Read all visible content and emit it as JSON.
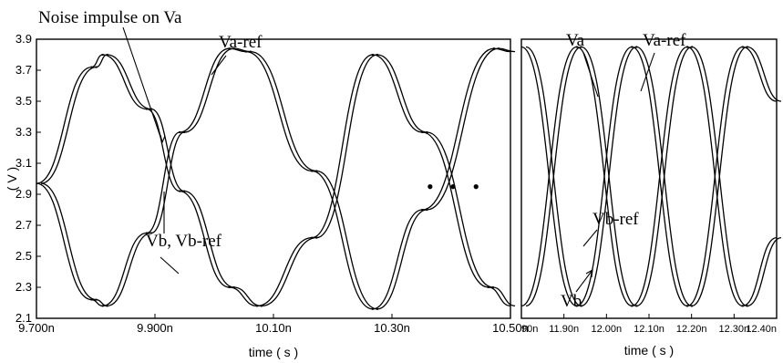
{
  "chart_data": [
    {
      "type": "line",
      "title": "",
      "xlabel": "time ( s )",
      "ylabel": "( V )",
      "xlim": [
        9.7,
        10.56
      ],
      "ylim": [
        2.1,
        3.9
      ],
      "x_ticks": [
        "9.700n",
        "9.900n",
        "10.10n",
        "10.30n",
        "10.50n"
      ],
      "y_ticks": [
        "3.9",
        "3.7",
        "3.5",
        "3.3",
        "3.1",
        "2.9",
        "2.7",
        "2.5",
        "2.3",
        "2.1"
      ],
      "series": [
        {
          "name": "Va",
          "x": [
            9.7,
            9.8,
            9.82,
            9.9,
            9.96,
            10.05,
            10.1,
            10.2,
            10.31,
            10.4,
            10.52,
            10.56
          ],
          "y": [
            2.97,
            3.72,
            3.8,
            3.45,
            2.92,
            2.3,
            2.18,
            2.62,
            3.8,
            3.3,
            2.3,
            2.18
          ]
        },
        {
          "name": "Va-ref",
          "x": [
            9.7,
            9.8,
            9.82,
            9.9,
            9.96,
            10.05,
            10.1,
            10.2,
            10.31,
            10.4,
            10.52,
            10.56
          ],
          "y": [
            2.97,
            3.72,
            3.8,
            3.45,
            2.92,
            2.3,
            2.18,
            2.62,
            3.8,
            3.3,
            2.3,
            2.18
          ]
        },
        {
          "name": "Vb",
          "x": [
            9.7,
            9.8,
            9.82,
            9.9,
            9.96,
            10.05,
            10.08,
            10.2,
            10.31,
            10.4,
            10.53,
            10.56
          ],
          "y": [
            2.97,
            2.22,
            2.18,
            2.65,
            3.3,
            3.84,
            3.82,
            3.05,
            2.16,
            2.8,
            3.84,
            3.82
          ]
        },
        {
          "name": "Vb-ref",
          "x": [
            9.7,
            9.8,
            9.82,
            9.9,
            9.96,
            10.05,
            10.08,
            10.2,
            10.31,
            10.4,
            10.53,
            10.56
          ],
          "y": [
            2.97,
            2.22,
            2.18,
            2.65,
            3.3,
            3.84,
            3.82,
            3.05,
            2.16,
            2.8,
            3.84,
            3.82
          ]
        }
      ],
      "annotations": [
        "Noise impulse on Va",
        "Va-ref",
        "Vb, Vb-ref"
      ]
    },
    {
      "type": "line",
      "title": "",
      "xlabel": "time ( s )",
      "ylabel": "",
      "xlim": [
        11.8,
        12.4
      ],
      "ylim": [
        2.1,
        3.9
      ],
      "x_ticks": [
        "90n",
        "11.90n",
        "12.00n",
        "12.10n",
        "12.20n",
        "12.30n",
        "12.40n"
      ],
      "series": [
        {
          "name": "Va",
          "x": [
            11.8,
            11.93,
            12.06,
            12.19,
            12.32,
            12.4
          ],
          "y": [
            3.85,
            2.18,
            3.85,
            2.18,
            3.85,
            3.5
          ]
        },
        {
          "name": "Va-ref",
          "x": [
            11.8,
            11.93,
            12.06,
            12.19,
            12.32,
            12.4
          ],
          "y": [
            3.85,
            2.18,
            3.85,
            2.18,
            3.85,
            3.5
          ]
        },
        {
          "name": "Vb",
          "x": [
            11.8,
            11.93,
            12.06,
            12.19,
            12.32,
            12.4
          ],
          "y": [
            2.18,
            3.85,
            2.18,
            3.85,
            2.18,
            2.62
          ]
        },
        {
          "name": "Vb-ref",
          "x": [
            11.8,
            11.93,
            12.06,
            12.19,
            12.32,
            12.4
          ],
          "y": [
            2.18,
            3.85,
            2.18,
            3.85,
            2.18,
            2.62
          ]
        }
      ],
      "annotations": [
        "Va",
        "Va-ref",
        "Vb-ref",
        "Vb"
      ]
    }
  ],
  "ellipsis": "• • •"
}
